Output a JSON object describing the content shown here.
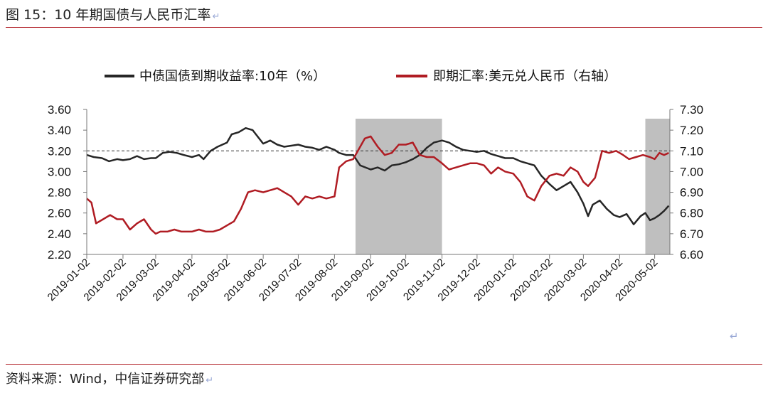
{
  "header": {
    "title": "图 15：10 年期国债与人民币汇率",
    "return_mark": "↵"
  },
  "footer": {
    "source": "资料来源：Wind，中信证券研究部",
    "return_mark": "↵",
    "stray_mark": "↵"
  },
  "colors": {
    "rule": "#b01c23",
    "series_black": "#262626",
    "series_red": "#b01c23",
    "shade": "#bfbfbf"
  },
  "chart_data": {
    "type": "line",
    "title": "",
    "x_labels": [
      "2019-01-02",
      "2019-02-02",
      "2019-03-02",
      "2019-04-02",
      "2019-05-02",
      "2019-06-02",
      "2019-07-02",
      "2019-08-02",
      "2019-09-02",
      "2019-10-02",
      "2019-11-02",
      "2019-12-02",
      "2020-01-02",
      "2020-02-02",
      "2020-03-02",
      "2020-04-02",
      "2020-05-02"
    ],
    "x_range": [
      "2019-01-02",
      "2020-05-15"
    ],
    "y_left": {
      "ticks": [
        "2.20",
        "2.40",
        "2.60",
        "2.80",
        "3.00",
        "3.20",
        "3.40",
        "3.60"
      ],
      "range": [
        2.2,
        3.6
      ]
    },
    "y_right": {
      "ticks": [
        "6.60",
        "6.70",
        "6.80",
        "6.90",
        "7.00",
        "7.10",
        "7.20",
        "7.30"
      ],
      "range": [
        6.6,
        7.3
      ]
    },
    "reference_line": {
      "axis": "right",
      "value": 7.1,
      "style": "dashed"
    },
    "shaded_periods": [
      {
        "start": "2019-08-20",
        "end": "2019-11-02"
      },
      {
        "start": "2020-04-24",
        "end": "2020-05-15"
      }
    ],
    "legend_position": "top",
    "grid": false,
    "series": [
      {
        "name": "中债国债到期收益率:10年（%）",
        "axis": "left",
        "color": "#262626",
        "points": [
          [
            "2019-01-02",
            3.16
          ],
          [
            "2019-01-08",
            3.14
          ],
          [
            "2019-01-15",
            3.13
          ],
          [
            "2019-01-21",
            3.1
          ],
          [
            "2019-01-28",
            3.12
          ],
          [
            "2019-02-02",
            3.11
          ],
          [
            "2019-02-08",
            3.12
          ],
          [
            "2019-02-14",
            3.15
          ],
          [
            "2019-02-20",
            3.12
          ],
          [
            "2019-02-26",
            3.13
          ],
          [
            "2019-03-02",
            3.13
          ],
          [
            "2019-03-08",
            3.18
          ],
          [
            "2019-03-14",
            3.19
          ],
          [
            "2019-03-20",
            3.18
          ],
          [
            "2019-03-26",
            3.16
          ],
          [
            "2019-04-02",
            3.14
          ],
          [
            "2019-04-08",
            3.16
          ],
          [
            "2019-04-12",
            3.12
          ],
          [
            "2019-04-18",
            3.2
          ],
          [
            "2019-04-24",
            3.24
          ],
          [
            "2019-05-02",
            3.28
          ],
          [
            "2019-05-06",
            3.36
          ],
          [
            "2019-05-12",
            3.38
          ],
          [
            "2019-05-18",
            3.42
          ],
          [
            "2019-05-24",
            3.4
          ],
          [
            "2019-06-02",
            3.27
          ],
          [
            "2019-06-08",
            3.3
          ],
          [
            "2019-06-14",
            3.26
          ],
          [
            "2019-06-20",
            3.24
          ],
          [
            "2019-06-26",
            3.25
          ],
          [
            "2019-07-02",
            3.26
          ],
          [
            "2019-07-08",
            3.24
          ],
          [
            "2019-07-14",
            3.23
          ],
          [
            "2019-07-20",
            3.21
          ],
          [
            "2019-07-26",
            3.24
          ],
          [
            "2019-08-02",
            3.21
          ],
          [
            "2019-08-06",
            3.18
          ],
          [
            "2019-08-12",
            3.16
          ],
          [
            "2019-08-18",
            3.16
          ],
          [
            "2019-08-24",
            3.06
          ],
          [
            "2019-09-02",
            3.02
          ],
          [
            "2019-09-08",
            3.04
          ],
          [
            "2019-09-14",
            3.01
          ],
          [
            "2019-09-20",
            3.06
          ],
          [
            "2019-09-26",
            3.07
          ],
          [
            "2019-10-02",
            3.09
          ],
          [
            "2019-10-08",
            3.12
          ],
          [
            "2019-10-14",
            3.16
          ],
          [
            "2019-10-20",
            3.23
          ],
          [
            "2019-10-26",
            3.28
          ],
          [
            "2019-11-02",
            3.3
          ],
          [
            "2019-11-08",
            3.28
          ],
          [
            "2019-11-14",
            3.24
          ],
          [
            "2019-11-20",
            3.21
          ],
          [
            "2019-11-26",
            3.2
          ],
          [
            "2019-12-02",
            3.19
          ],
          [
            "2019-12-08",
            3.2
          ],
          [
            "2019-12-14",
            3.17
          ],
          [
            "2019-12-20",
            3.15
          ],
          [
            "2019-12-26",
            3.13
          ],
          [
            "2020-01-02",
            3.13
          ],
          [
            "2020-01-08",
            3.1
          ],
          [
            "2020-01-14",
            3.08
          ],
          [
            "2020-01-20",
            3.06
          ],
          [
            "2020-01-26",
            2.96
          ],
          [
            "2020-02-02",
            2.88
          ],
          [
            "2020-02-08",
            2.82
          ],
          [
            "2020-02-14",
            2.86
          ],
          [
            "2020-02-20",
            2.9
          ],
          [
            "2020-02-26",
            2.8
          ],
          [
            "2020-03-02",
            2.69
          ],
          [
            "2020-03-06",
            2.57
          ],
          [
            "2020-03-10",
            2.68
          ],
          [
            "2020-03-16",
            2.72
          ],
          [
            "2020-03-22",
            2.64
          ],
          [
            "2020-03-28",
            2.58
          ],
          [
            "2020-04-02",
            2.56
          ],
          [
            "2020-04-08",
            2.59
          ],
          [
            "2020-04-14",
            2.49
          ],
          [
            "2020-04-20",
            2.57
          ],
          [
            "2020-04-24",
            2.6
          ],
          [
            "2020-04-28",
            2.53
          ],
          [
            "2020-05-02",
            2.55
          ],
          [
            "2020-05-06",
            2.58
          ],
          [
            "2020-05-10",
            2.62
          ],
          [
            "2020-05-14",
            2.67
          ]
        ]
      },
      {
        "name": "即期汇率:美元兑人民币（右轴）",
        "axis": "right",
        "color": "#b01c23",
        "points": [
          [
            "2019-01-02",
            6.87
          ],
          [
            "2019-01-06",
            6.85
          ],
          [
            "2019-01-10",
            6.75
          ],
          [
            "2019-01-16",
            6.77
          ],
          [
            "2019-01-22",
            6.79
          ],
          [
            "2019-01-28",
            6.77
          ],
          [
            "2019-02-02",
            6.77
          ],
          [
            "2019-02-08",
            6.72
          ],
          [
            "2019-02-14",
            6.75
          ],
          [
            "2019-02-20",
            6.77
          ],
          [
            "2019-02-26",
            6.72
          ],
          [
            "2019-03-02",
            6.7
          ],
          [
            "2019-03-06",
            6.71
          ],
          [
            "2019-03-12",
            6.71
          ],
          [
            "2019-03-18",
            6.72
          ],
          [
            "2019-03-24",
            6.71
          ],
          [
            "2019-04-02",
            6.71
          ],
          [
            "2019-04-08",
            6.72
          ],
          [
            "2019-04-14",
            6.71
          ],
          [
            "2019-04-20",
            6.71
          ],
          [
            "2019-04-26",
            6.72
          ],
          [
            "2019-05-02",
            6.74
          ],
          [
            "2019-05-08",
            6.76
          ],
          [
            "2019-05-14",
            6.82
          ],
          [
            "2019-05-20",
            6.9
          ],
          [
            "2019-05-26",
            6.91
          ],
          [
            "2019-06-02",
            6.9
          ],
          [
            "2019-06-08",
            6.91
          ],
          [
            "2019-06-14",
            6.92
          ],
          [
            "2019-06-20",
            6.9
          ],
          [
            "2019-06-26",
            6.88
          ],
          [
            "2019-07-02",
            6.84
          ],
          [
            "2019-07-08",
            6.88
          ],
          [
            "2019-07-14",
            6.87
          ],
          [
            "2019-07-20",
            6.88
          ],
          [
            "2019-07-26",
            6.87
          ],
          [
            "2019-08-02",
            6.88
          ],
          [
            "2019-08-06",
            7.02
          ],
          [
            "2019-08-12",
            7.05
          ],
          [
            "2019-08-18",
            7.06
          ],
          [
            "2019-08-24",
            7.12
          ],
          [
            "2019-08-28",
            7.16
          ],
          [
            "2019-09-02",
            7.17
          ],
          [
            "2019-09-08",
            7.12
          ],
          [
            "2019-09-14",
            7.08
          ],
          [
            "2019-09-20",
            7.09
          ],
          [
            "2019-09-26",
            7.13
          ],
          [
            "2019-10-02",
            7.13
          ],
          [
            "2019-10-08",
            7.14
          ],
          [
            "2019-10-14",
            7.08
          ],
          [
            "2019-10-20",
            7.07
          ],
          [
            "2019-10-26",
            7.07
          ],
          [
            "2019-11-02",
            7.04
          ],
          [
            "2019-11-08",
            7.01
          ],
          [
            "2019-11-14",
            7.02
          ],
          [
            "2019-11-20",
            7.03
          ],
          [
            "2019-11-26",
            7.04
          ],
          [
            "2019-12-02",
            7.04
          ],
          [
            "2019-12-08",
            7.03
          ],
          [
            "2019-12-14",
            6.99
          ],
          [
            "2019-12-20",
            7.02
          ],
          [
            "2019-12-26",
            7.0
          ],
          [
            "2020-01-02",
            6.99
          ],
          [
            "2020-01-08",
            6.95
          ],
          [
            "2020-01-14",
            6.88
          ],
          [
            "2020-01-20",
            6.86
          ],
          [
            "2020-01-26",
            6.93
          ],
          [
            "2020-02-02",
            6.98
          ],
          [
            "2020-02-08",
            6.99
          ],
          [
            "2020-02-14",
            6.98
          ],
          [
            "2020-02-20",
            7.02
          ],
          [
            "2020-02-26",
            7.0
          ],
          [
            "2020-03-02",
            6.95
          ],
          [
            "2020-03-06",
            6.93
          ],
          [
            "2020-03-12",
            6.97
          ],
          [
            "2020-03-18",
            7.1
          ],
          [
            "2020-03-24",
            7.09
          ],
          [
            "2020-03-30",
            7.1
          ],
          [
            "2020-04-05",
            7.08
          ],
          [
            "2020-04-10",
            7.06
          ],
          [
            "2020-04-16",
            7.07
          ],
          [
            "2020-04-22",
            7.08
          ],
          [
            "2020-04-28",
            7.07
          ],
          [
            "2020-05-02",
            7.06
          ],
          [
            "2020-05-06",
            7.09
          ],
          [
            "2020-05-10",
            7.08
          ],
          [
            "2020-05-14",
            7.09
          ]
        ]
      }
    ]
  }
}
